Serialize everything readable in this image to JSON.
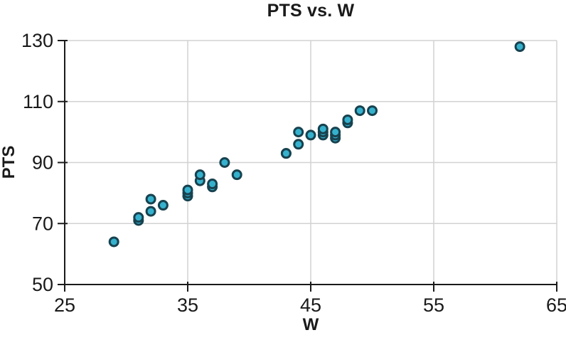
{
  "chart_data": {
    "type": "scatter",
    "title": "PTS vs. W",
    "xlabel": "W",
    "ylabel": "PTS",
    "xlim": [
      25,
      65
    ],
    "ylim": [
      50,
      130
    ],
    "xticks": [
      25,
      35,
      45,
      55,
      65
    ],
    "yticks": [
      50,
      70,
      90,
      110,
      130
    ],
    "grid": true,
    "legend": false,
    "marker": {
      "fill": "#35b1cd",
      "stroke": "#17424f"
    },
    "colors": {
      "axis": "#1a1a1a",
      "grid": "#d2d2d2",
      "text": "#1a1a1a",
      "background": "#ffffff"
    },
    "points": [
      [
        29,
        64
      ],
      [
        31,
        71
      ],
      [
        31,
        72
      ],
      [
        32,
        74
      ],
      [
        32,
        78
      ],
      [
        33,
        76
      ],
      [
        35,
        79
      ],
      [
        35,
        80
      ],
      [
        35,
        81
      ],
      [
        36,
        84
      ],
      [
        36,
        86
      ],
      [
        37,
        82
      ],
      [
        37,
        83
      ],
      [
        38,
        90
      ],
      [
        39,
        86
      ],
      [
        43,
        93
      ],
      [
        43,
        93
      ],
      [
        44,
        96
      ],
      [
        44,
        100
      ],
      [
        45,
        99
      ],
      [
        46,
        99
      ],
      [
        46,
        100
      ],
      [
        46,
        101
      ],
      [
        47,
        98
      ],
      [
        47,
        99
      ],
      [
        47,
        100
      ],
      [
        48,
        103
      ],
      [
        48,
        104
      ],
      [
        49,
        107
      ],
      [
        50,
        107
      ],
      [
        62,
        128
      ]
    ]
  }
}
